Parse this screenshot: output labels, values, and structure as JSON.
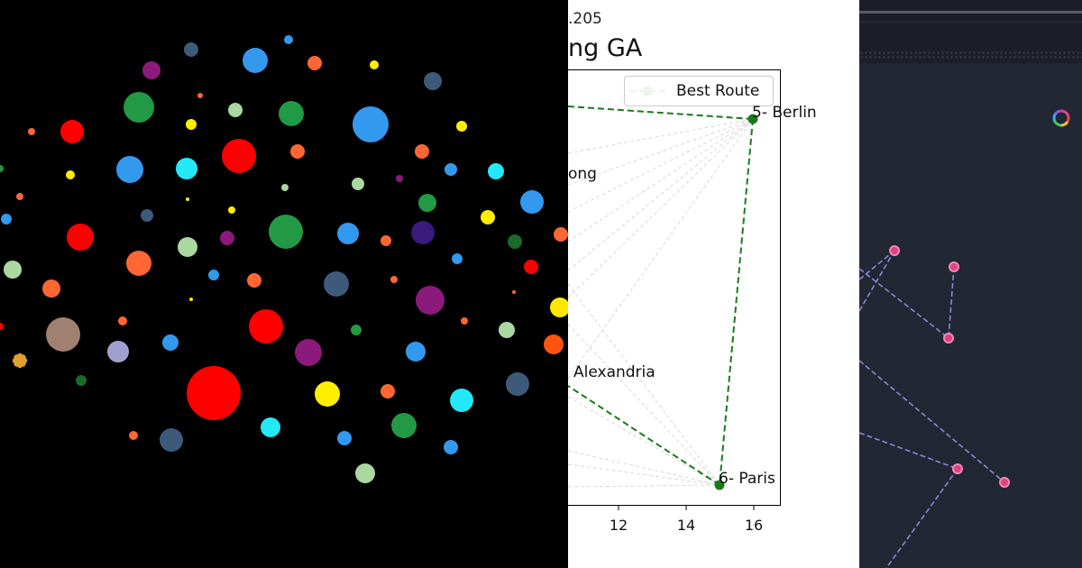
{
  "plot": {
    "subtitle_fragment": ".205",
    "title_fragment": "ng GA",
    "legend_label": "Best Route",
    "x_ticks": [
      "12",
      "14",
      "16"
    ],
    "cities": [
      {
        "label": "5- Berlin"
      },
      {
        "label": "ong"
      },
      {
        "label": "Alexandria"
      },
      {
        "label": "6- Paris"
      }
    ],
    "colors": {
      "route": "#1a7a1a",
      "faint": "#c8c8c8"
    }
  },
  "graph": {
    "node_color": "#e0427f",
    "edge_color": "#8b86d8",
    "logo_icon": "color-wheel-icon"
  },
  "bubbles": {
    "palette": [
      "#ff0000",
      "#229944",
      "#3399ee",
      "#22e0f0",
      "#ffee00",
      "#ff6633",
      "#aad8a0",
      "#8b1a7a",
      "#3d5a7a",
      "#a08070",
      "#a0a0d0",
      "#3a1a7a",
      "#ffe800"
    ]
  }
}
